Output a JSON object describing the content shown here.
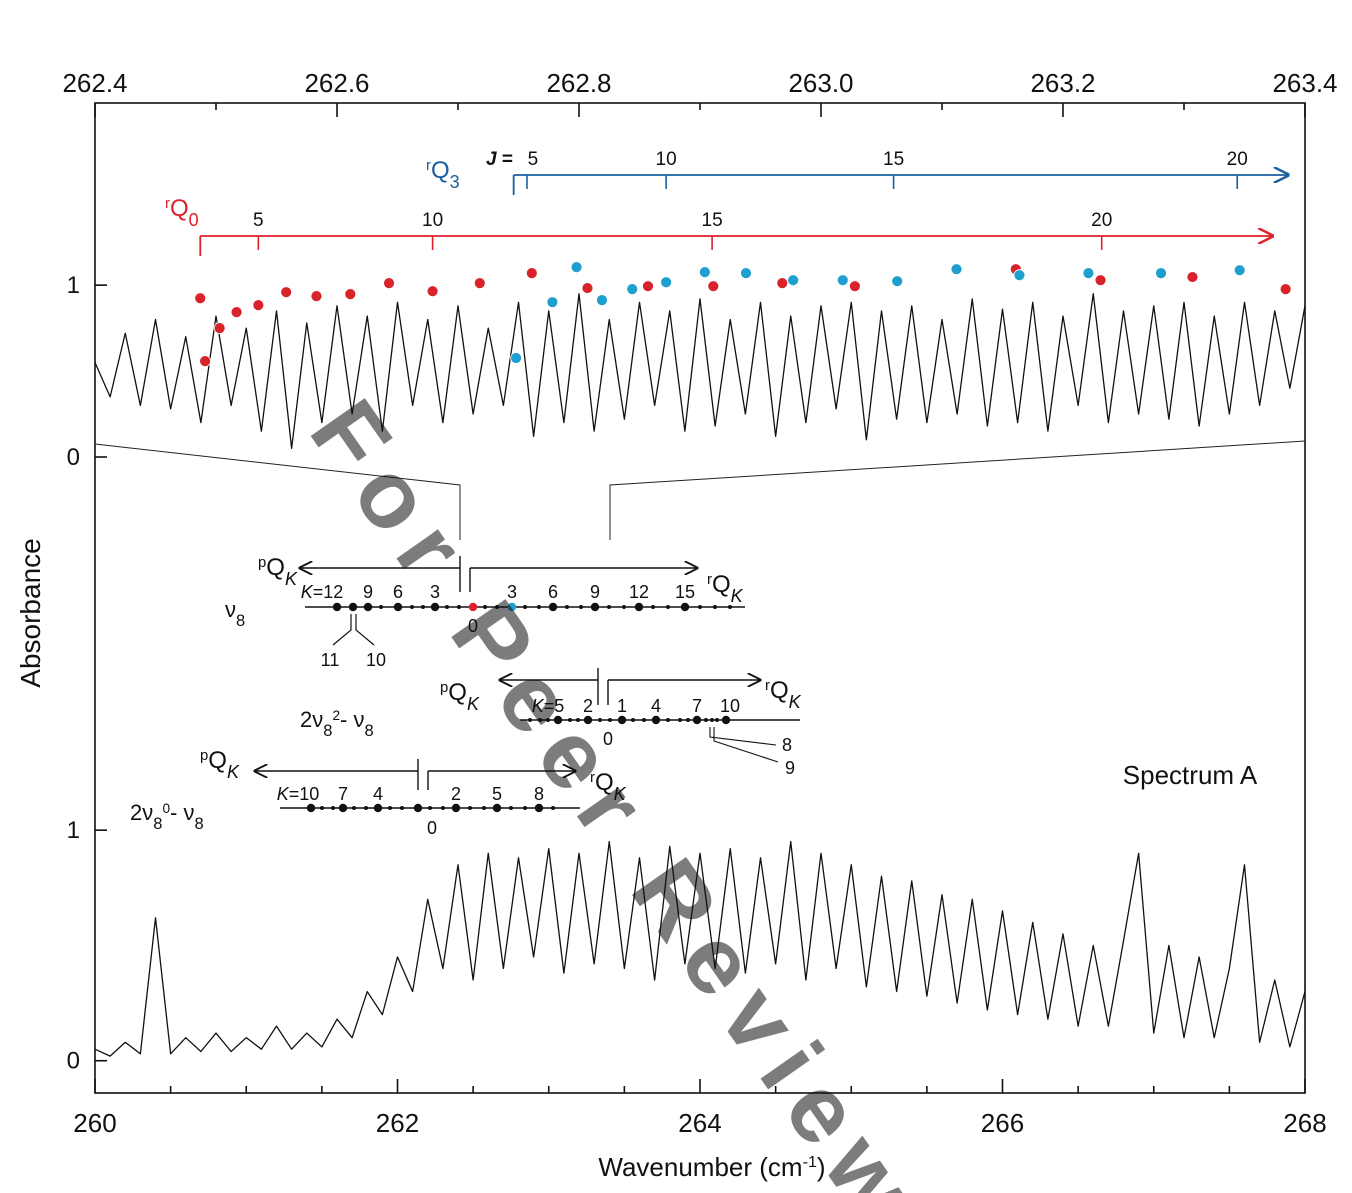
{
  "chart_data": [
    {
      "type": "line",
      "xlim": [
        262.4,
        263.4
      ],
      "xticks": [
        262.4,
        262.6,
        262.8,
        {
          "value": 263,
          "label": "263.0"
        },
        263.2,
        263.4
      ],
      "xminorticks": [
        262.5,
        262.7,
        262.9,
        263.1,
        263.3
      ],
      "ylim": [
        0,
        2.06
      ],
      "yticks": [
        0,
        1
      ],
      "series": [
        {
          "color": "#111111",
          "x": [
            262.4,
            262.4125,
            262.425,
            262.4375,
            262.45,
            262.4625,
            262.475,
            262.4875,
            262.5,
            262.5125,
            262.525,
            262.5375,
            262.55,
            262.5625,
            262.575,
            262.5875,
            262.6,
            262.6125,
            262.625,
            262.6375,
            262.65,
            262.6625,
            262.675,
            262.6875,
            262.7,
            262.7125,
            262.725,
            262.7375,
            262.75,
            262.7625,
            262.775,
            262.7875,
            262.8,
            262.8125,
            262.825,
            262.8375,
            262.85,
            262.8625,
            262.875,
            262.8875,
            262.9,
            262.9125,
            262.925,
            262.9375,
            262.95,
            262.9625,
            262.975,
            262.9875,
            263.0,
            263.0125,
            263.025,
            263.0375,
            263.05,
            263.0625,
            263.075,
            263.0875,
            263.1,
            263.1125,
            263.125,
            263.1375,
            263.15,
            263.1625,
            263.175,
            263.1875,
            263.2,
            263.2125,
            263.225,
            263.2375,
            263.25,
            263.2625,
            263.275,
            263.2875,
            263.3,
            263.3125,
            263.325,
            263.3375,
            263.35,
            263.3625,
            263.375,
            263.3875,
            263.4
          ],
          "values": [
            0.55,
            0.35,
            0.72,
            0.3,
            0.8,
            0.28,
            0.7,
            0.2,
            0.82,
            0.3,
            0.75,
            0.15,
            0.85,
            0.05,
            0.78,
            0.2,
            0.88,
            0.25,
            0.82,
            0.15,
            0.9,
            0.3,
            0.8,
            0.2,
            0.88,
            0.25,
            0.75,
            0.3,
            0.9,
            0.12,
            0.85,
            0.2,
            0.95,
            0.15,
            0.8,
            0.22,
            0.9,
            0.3,
            0.85,
            0.15,
            0.92,
            0.18,
            0.8,
            0.25,
            0.9,
            0.12,
            0.82,
            0.2,
            0.88,
            0.28,
            0.9,
            0.1,
            0.85,
            0.22,
            0.88,
            0.2,
            0.8,
            0.25,
            0.92,
            0.18,
            0.86,
            0.2,
            0.9,
            0.15,
            0.82,
            0.3,
            0.95,
            0.2,
            0.85,
            0.25,
            0.88,
            0.22,
            0.9,
            0.18,
            0.82,
            0.25,
            0.9,
            0.3,
            0.85,
            0.4,
            0.88
          ]
        },
        {
          "color": "#d8232a",
          "marker": "circle",
          "x": [
            262.487,
            262.491,
            262.503,
            262.517,
            262.535,
            262.558,
            262.583,
            262.611,
            262.643,
            262.679,
            262.718,
            262.761,
            262.807,
            262.857,
            262.911,
            262.968,
            263.028,
            263.161,
            263.231,
            263.307,
            263.384
          ],
          "values": [
            0.924,
            0.558,
            0.75,
            0.843,
            0.884,
            0.959,
            0.936,
            0.948,
            1.012,
            0.965,
            1.012,
            1.07,
            0.983,
            0.994,
            0.994,
            1.012,
            0.994,
            1.093,
            1.029,
            1.047,
            0.977
          ]
        },
        {
          "color": "#1f9fd0",
          "marker": "circle",
          "x": [
            262.748,
            262.778,
            262.798,
            262.819,
            262.844,
            262.872,
            262.904,
            262.938,
            262.977,
            263.018,
            263.063,
            263.112,
            263.164,
            263.221,
            263.281,
            263.346
          ],
          "values": [
            0.576,
            0.901,
            1.105,
            0.913,
            0.977,
            1.017,
            1.076,
            1.07,
            1.029,
            1.029,
            1.023,
            1.093,
            1.058,
            1.07,
            1.07,
            1.087
          ]
        }
      ],
      "progressions": [
        {
          "label": {
            "sup": "r",
            "main": "Q",
            "sub": "0"
          },
          "color": "#e0202a",
          "start": 262.487,
          "end": 263.373,
          "J": [
            5,
            10,
            15,
            20
          ],
          "Jx": [
            262.535,
            262.679,
            262.91,
            263.232
          ]
        },
        {
          "label": {
            "sup": "r",
            "main": "Q",
            "sub": "3"
          },
          "color": "#1a5fa0",
          "start": 262.746,
          "end": 263.386,
          "jlabel": {
            "ital": "J",
            "main": " ="
          },
          "J": [
            5,
            10,
            15,
            20
          ],
          "Jx": [
            262.757,
            262.872,
            263.06,
            263.344
          ]
        }
      ]
    },
    {
      "type": "line",
      "xlim": [
        260,
        268
      ],
      "xticks": [
        260,
        262,
        264,
        266,
        268
      ],
      "xminorticks": [
        260.5,
        261,
        261.5,
        262.5,
        263,
        263.5,
        264.5,
        265,
        265.5,
        266.5,
        267,
        267.5
      ],
      "ylim": [
        -0.14,
        1.3
      ],
      "yticks": [
        0,
        1
      ],
      "xlabel": {
        "main": "Wavenumber (cm",
        "sup": "-1",
        "tail": ")"
      },
      "ylabel": "Absorbance",
      "annotation": "Spectrum A",
      "series": [
        {
          "color": "#111111",
          "x": [
            260,
            260.1,
            260.2,
            260.3,
            260.4,
            260.5,
            260.6,
            260.7,
            260.8,
            260.9,
            261,
            261.1,
            261.2,
            261.3,
            261.4,
            261.5,
            261.6,
            261.7,
            261.8,
            261.9,
            262,
            262.1,
            262.2,
            262.3,
            262.4,
            262.5,
            262.6,
            262.7,
            262.8,
            262.9,
            263,
            263.1,
            263.2,
            263.3,
            263.4,
            263.5,
            263.6,
            263.7,
            263.8,
            263.9,
            264,
            264.1,
            264.2,
            264.3,
            264.4,
            264.5,
            264.6,
            264.7,
            264.8,
            264.9,
            265,
            265.1,
            265.2,
            265.3,
            265.4,
            265.5,
            265.6,
            265.7,
            265.8,
            265.9,
            266,
            266.1,
            266.2,
            266.3,
            266.4,
            266.5,
            266.6,
            266.7,
            266.8,
            266.9,
            267,
            267.1,
            267.2,
            267.3,
            267.4,
            267.5,
            267.6,
            267.7,
            267.8,
            267.9,
            268
          ],
          "values": [
            0.05,
            0.02,
            0.08,
            0.03,
            0.62,
            0.03,
            0.1,
            0.04,
            0.12,
            0.04,
            0.1,
            0.05,
            0.15,
            0.05,
            0.12,
            0.06,
            0.18,
            0.1,
            0.3,
            0.2,
            0.45,
            0.3,
            0.7,
            0.4,
            0.85,
            0.35,
            0.9,
            0.4,
            0.88,
            0.45,
            0.92,
            0.38,
            0.9,
            0.42,
            0.95,
            0.4,
            0.88,
            0.35,
            0.93,
            0.42,
            0.9,
            0.4,
            0.92,
            0.38,
            0.88,
            0.42,
            0.95,
            0.35,
            0.9,
            0.4,
            0.85,
            0.32,
            0.8,
            0.3,
            0.78,
            0.28,
            0.72,
            0.25,
            0.7,
            0.22,
            0.65,
            0.2,
            0.6,
            0.18,
            0.55,
            0.15,
            0.5,
            0.15,
            0.52,
            0.9,
            0.12,
            0.5,
            0.1,
            0.45,
            0.1,
            0.4,
            0.85,
            0.08,
            0.35,
            0.06,
            0.3
          ]
        }
      ]
    }
  ],
  "diagrams": [
    {
      "name": {
        "main": "ν",
        "sub": "8"
      },
      "left": {
        "sup": "p",
        "main": "Q",
        "subi": "K"
      },
      "right": {
        "sup": "r",
        "main": "Q",
        "subi": "K"
      },
      "labels": [
        {
          "ital": "K",
          "main": "=12"
        },
        "9",
        "6",
        "3",
        "3",
        "6",
        "9",
        "12",
        "15"
      ],
      "zero": "0",
      "zero_color": "#e0202a",
      "mark_color": "#1f9fd0",
      "extra": [
        "11",
        "10"
      ]
    },
    {
      "name": {
        "main": "2ν",
        "sub": "8",
        "sup": "2",
        "main2": "- ν",
        "sub2": "8"
      },
      "left": {
        "sup": "p",
        "main": "Q",
        "subi": "K"
      },
      "right": {
        "sup": "r",
        "main": "Q",
        "subi": "K"
      },
      "labels": [
        {
          "ital": "K",
          "main": "=5"
        },
        "2",
        "1",
        "4",
        "7",
        "10"
      ],
      "zero": "0",
      "extra": [
        "8",
        "9"
      ]
    },
    {
      "name": {
        "main": "2ν",
        "sub": "8",
        "sup": "0",
        "main2": "- ν",
        "sub2": "8"
      },
      "left": {
        "sup": "p",
        "main": "Q",
        "subi": "K"
      },
      "right": {
        "sup": "r",
        "main": "Q",
        "subi": "K"
      },
      "labels": [
        {
          "ital": "K",
          "main": "=10"
        },
        "7",
        "4",
        "2",
        "5",
        "8"
      ],
      "zero": "0"
    }
  ],
  "watermark": "For Peer Review"
}
